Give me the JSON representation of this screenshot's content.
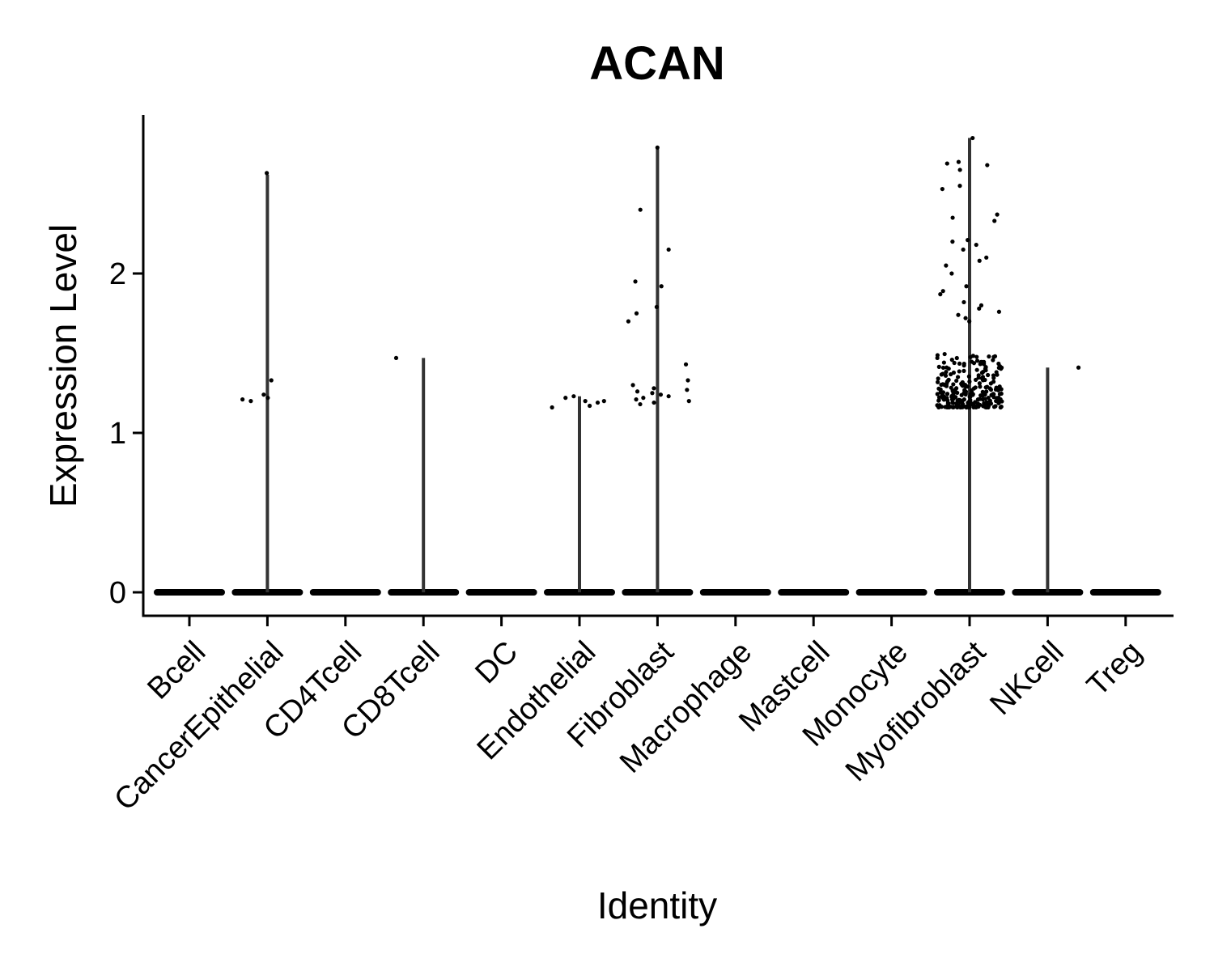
{
  "chart_data": {
    "type": "violin",
    "title": "ACAN",
    "xlabel": "Identity",
    "ylabel": "Expression Level",
    "ylim": [
      -0.14,
      3.0
    ],
    "yticks": [
      0,
      1,
      2
    ],
    "grid": false,
    "legend": "none",
    "colors": {
      "violin": "#333333",
      "points": "#000000",
      "axis": "#000000"
    },
    "categories": [
      "Bcell",
      "CancerEpithelial",
      "CD4Tcell",
      "CD8Tcell",
      "DC",
      "Endothelial",
      "Fibroblast",
      "Macrophage",
      "Mastcell",
      "Monocyte",
      "Myofibroblast",
      "NKcell",
      "Treg"
    ],
    "violin_max": [
      0,
      2.62,
      0,
      1.47,
      0,
      1.23,
      2.78,
      0,
      0,
      0,
      2.85,
      1.41,
      0
    ],
    "nonzero_points": {
      "CancerEpithelial": [
        2.63,
        1.33,
        1.21,
        1.2,
        1.24,
        1.22
      ],
      "CD8Tcell": [
        1.47
      ],
      "Endothelial": [
        1.2,
        1.2,
        1.23,
        1.22,
        1.19,
        1.17,
        1.16
      ],
      "Fibroblast": [
        2.79,
        2.4,
        2.15,
        1.95,
        1.92,
        1.79,
        1.75,
        1.7,
        1.43,
        1.33,
        1.3,
        1.28,
        1.27,
        1.26,
        1.25,
        1.24,
        1.23,
        1.22,
        1.21,
        1.2,
        1.19,
        1.18
      ],
      "Myofibroblast": [
        2.85,
        2.7,
        2.69,
        2.68,
        2.65,
        2.55,
        2.53,
        2.37,
        2.35,
        2.33,
        2.21,
        2.2,
        2.18,
        2.15,
        2.1,
        2.08,
        2.05,
        2.0,
        1.92,
        1.89,
        1.87,
        1.82,
        1.8,
        1.78,
        1.76,
        1.74,
        1.72,
        1.7
      ],
      "NKcell": [
        1.41
      ]
    },
    "myofibroblast_dense_band": [
      1.16,
      1.5
    ]
  }
}
